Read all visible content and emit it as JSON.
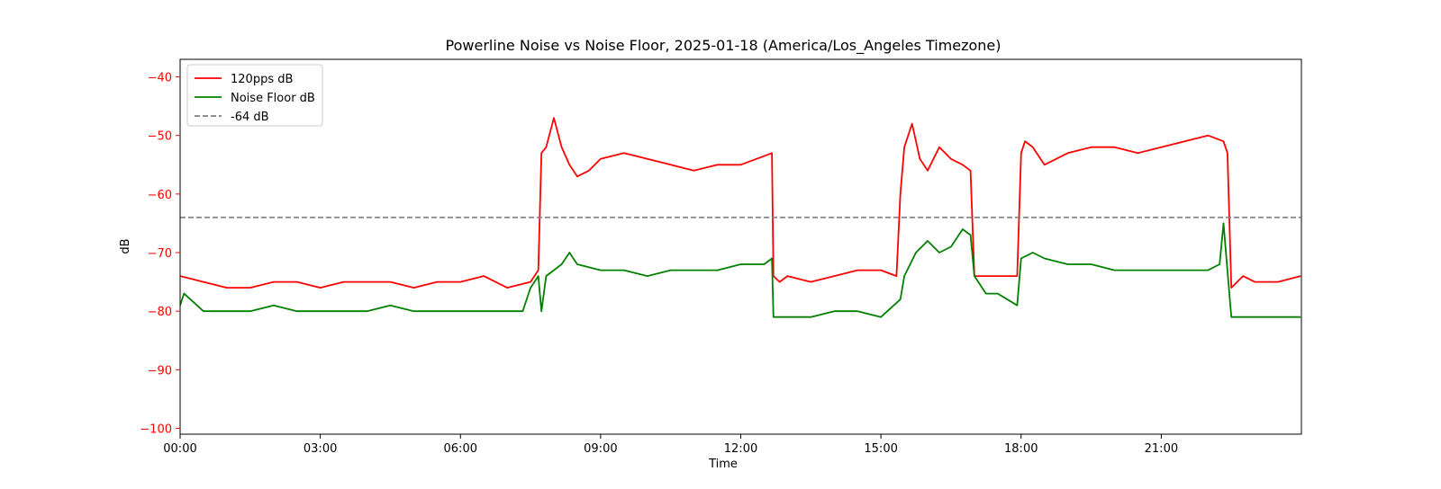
{
  "chart_data": {
    "type": "line",
    "title": "Powerline Noise vs Noise Floor, 2025-01-18 (America/Los_Angeles Timezone)",
    "xlabel": "Time",
    "ylabel": "dB",
    "xlim": [
      "00:00",
      "24:00"
    ],
    "ylim": [
      -101,
      -37
    ],
    "x_ticks": [
      "00:00",
      "03:00",
      "06:00",
      "09:00",
      "12:00",
      "15:00",
      "18:00",
      "21:00"
    ],
    "y_ticks": [
      -40,
      -50,
      -60,
      -70,
      -80,
      -90,
      -100
    ],
    "ylabel_color": "#ff0000",
    "grid": false,
    "legend_position": "top-left",
    "series": [
      {
        "name": "120pps dB",
        "color": "#ff0000",
        "style": "solid",
        "x": [
          "00:00",
          "00:30",
          "01:00",
          "01:30",
          "02:00",
          "02:30",
          "03:00",
          "03:30",
          "04:00",
          "04:30",
          "05:00",
          "05:30",
          "06:00",
          "06:30",
          "07:00",
          "07:30",
          "07:40",
          "07:44",
          "07:50",
          "08:00",
          "08:10",
          "08:20",
          "08:30",
          "08:45",
          "09:00",
          "09:30",
          "10:00",
          "10:30",
          "11:00",
          "11:30",
          "12:00",
          "12:20",
          "12:40",
          "12:42",
          "12:50",
          "13:00",
          "13:30",
          "14:00",
          "14:30",
          "15:00",
          "15:20",
          "15:25",
          "15:30",
          "15:40",
          "15:50",
          "16:00",
          "16:15",
          "16:30",
          "16:45",
          "16:55",
          "17:00",
          "17:30",
          "17:55",
          "18:00",
          "18:05",
          "18:15",
          "18:30",
          "19:00",
          "19:30",
          "20:00",
          "20:30",
          "21:00",
          "21:30",
          "22:00",
          "22:20",
          "22:25",
          "22:30",
          "22:45",
          "23:00",
          "23:30",
          "23:59"
        ],
        "values": [
          -74,
          -75,
          -76,
          -76,
          -75,
          -75,
          -76,
          -75,
          -75,
          -75,
          -76,
          -75,
          -75,
          -74,
          -76,
          -75,
          -73,
          -53,
          -52,
          -47,
          -52,
          -55,
          -57,
          -56,
          -54,
          -53,
          -54,
          -55,
          -56,
          -55,
          -55,
          -54,
          -53,
          -74,
          -75,
          -74,
          -75,
          -74,
          -73,
          -73,
          -74,
          -60,
          -52,
          -48,
          -54,
          -56,
          -52,
          -54,
          -55,
          -56,
          -74,
          -74,
          -74,
          -53,
          -51,
          -52,
          -55,
          -53,
          -52,
          -52,
          -53,
          -52,
          -51,
          -50,
          -51,
          -53,
          -76,
          -74,
          -75,
          -75,
          -74
        ]
      },
      {
        "name": "Noise Floor dB",
        "color": "#008000",
        "style": "solid",
        "x": [
          "00:00",
          "00:05",
          "00:30",
          "01:00",
          "01:30",
          "02:00",
          "02:30",
          "03:00",
          "03:30",
          "04:00",
          "04:30",
          "05:00",
          "05:30",
          "06:00",
          "06:30",
          "07:00",
          "07:20",
          "07:30",
          "07:40",
          "07:44",
          "07:50",
          "08:00",
          "08:10",
          "08:20",
          "08:30",
          "09:00",
          "09:30",
          "10:00",
          "10:30",
          "11:00",
          "11:30",
          "12:00",
          "12:30",
          "12:40",
          "12:42",
          "13:00",
          "13:30",
          "14:00",
          "14:30",
          "15:00",
          "15:25",
          "15:30",
          "15:45",
          "16:00",
          "16:15",
          "16:30",
          "16:45",
          "16:55",
          "17:00",
          "17:15",
          "17:30",
          "17:55",
          "18:00",
          "18:15",
          "18:30",
          "19:00",
          "19:30",
          "20:00",
          "20:30",
          "21:00",
          "21:30",
          "22:00",
          "22:15",
          "22:20",
          "22:30",
          "23:00",
          "23:30",
          "23:59"
        ],
        "values": [
          -79,
          -77,
          -80,
          -80,
          -80,
          -79,
          -80,
          -80,
          -80,
          -80,
          -79,
          -80,
          -80,
          -80,
          -80,
          -80,
          -80,
          -76,
          -74,
          -80,
          -74,
          -73,
          -72,
          -70,
          -72,
          -73,
          -73,
          -74,
          -73,
          -73,
          -73,
          -72,
          -72,
          -71,
          -81,
          -81,
          -81,
          -80,
          -80,
          -81,
          -78,
          -74,
          -70,
          -68,
          -70,
          -69,
          -66,
          -67,
          -74,
          -77,
          -77,
          -79,
          -71,
          -70,
          -71,
          -72,
          -72,
          -73,
          -73,
          -73,
          -73,
          -73,
          -72,
          -65,
          -81,
          -81,
          -81,
          -81
        ]
      },
      {
        "name": "-64 dB",
        "color": "#808080",
        "style": "dashed",
        "x": [
          "00:00",
          "23:59"
        ],
        "values": [
          -64,
          -64
        ]
      }
    ]
  }
}
